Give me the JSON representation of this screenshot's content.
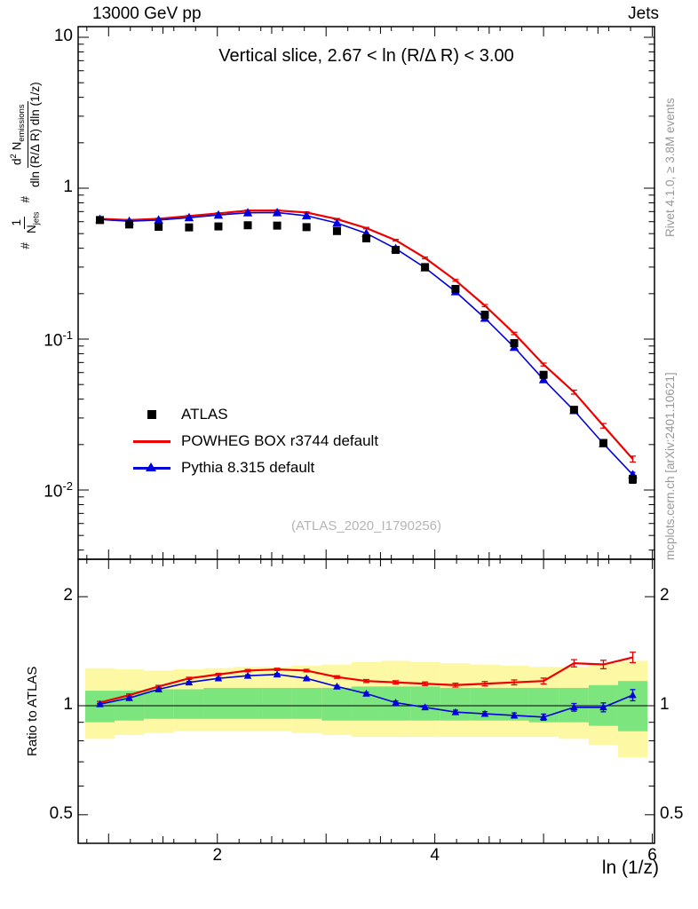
{
  "header": {
    "left": "13000 GeV pp",
    "right": "Jets"
  },
  "title": "Vertical slice, 2.67 < ln (R/Δ R) < 3.00",
  "watermark": "(ATLAS_2020_I1790256)",
  "side_notes": {
    "top": "Rivet 4.1.0, ≥ 3.8M events",
    "bottom": "mcplots.cern.ch [arXiv:2401.10621]"
  },
  "axes": {
    "x_label": "ln (1/z)",
    "ratio_label": "Ratio to ATLAS",
    "main_y_ticks": [
      {
        "v": 10,
        "t": "10"
      },
      {
        "v": 1,
        "t": "1"
      },
      {
        "v": 0.1,
        "t": "10",
        "sup": "-1"
      },
      {
        "v": 0.01,
        "t": "10",
        "sup": "-2"
      }
    ],
    "ratio_y_ticks": [
      {
        "v": 2,
        "t": "2"
      },
      {
        "v": 1,
        "t": "1"
      },
      {
        "v": 0.5,
        "t": "0.5"
      }
    ],
    "x_ticks": [
      {
        "v": 2,
        "t": "2"
      },
      {
        "v": 4,
        "t": "4"
      },
      {
        "v": 6,
        "t": "6"
      }
    ],
    "ylabel_formula": {
      "hash": "#",
      "hash2": "#",
      "num1": "1",
      "den1_main": "N",
      "den1_sub": "jets",
      "num2_main": "d",
      "num2_sup": "2",
      "num2_rest": " N",
      "num2_sub": "emissions",
      "den2": "dln (R/Δ R) dln (1/z)"
    }
  },
  "legend": [
    {
      "label": "ATLAS",
      "marker": "square",
      "color": "#000000"
    },
    {
      "label": "POWHEG BOX r3744 default",
      "marker": "line",
      "color": "#ee0000"
    },
    {
      "label": "Pythia 8.315 default",
      "marker": "triangle-line",
      "color": "#0000dd"
    }
  ],
  "chart_data": {
    "type": "line",
    "title": "Vertical slice, 2.67 < ln (R/Δ R) < 3.00",
    "xlabel": "ln (1/z)",
    "ylabel": "1/N_jets d2N_emissions / dln(R/Δ R) dln(1/z)",
    "ratio_ylabel": "Ratio to ATLAS",
    "xlim": [
      0.72,
      6.02
    ],
    "main_ylim": [
      0.0035,
      11.7
    ],
    "ratio_ylim": [
      0.42,
      2.54
    ],
    "main_yscale": "log",
    "ratio_yscale": "log",
    "x": [
      0.92,
      1.19,
      1.46,
      1.74,
      2.01,
      2.28,
      2.55,
      2.82,
      3.1,
      3.37,
      3.64,
      3.91,
      4.19,
      4.46,
      4.73,
      5.0,
      5.28,
      5.55,
      5.82
    ],
    "series": [
      {
        "name": "ATLAS",
        "marker": "square",
        "color": "#000000",
        "values": [
          0.615,
          0.575,
          0.555,
          0.55,
          0.558,
          0.568,
          0.565,
          0.552,
          0.52,
          0.465,
          0.39,
          0.3,
          0.215,
          0.145,
          0.094,
          0.058,
          0.034,
          0.0205,
          0.0118
        ],
        "err_frac": [
          0.02,
          0.018,
          0.018,
          0.018,
          0.018,
          0.018,
          0.018,
          0.018,
          0.018,
          0.018,
          0.02,
          0.02,
          0.022,
          0.025,
          0.028,
          0.032,
          0.04,
          0.05,
          0.06
        ]
      },
      {
        "name": "POWHEG BOX r3744 default",
        "marker": "none",
        "color": "#ee0000",
        "ratio_to_atlas": [
          1.02,
          1.07,
          1.13,
          1.19,
          1.22,
          1.25,
          1.26,
          1.25,
          1.2,
          1.17,
          1.16,
          1.15,
          1.14,
          1.15,
          1.16,
          1.17,
          1.31,
          1.3,
          1.36
        ],
        "ratio_err": [
          0.008,
          0.008,
          0.008,
          0.008,
          0.008,
          0.009,
          0.009,
          0.01,
          0.01,
          0.011,
          0.012,
          0.013,
          0.014,
          0.016,
          0.018,
          0.022,
          0.03,
          0.035,
          0.045
        ]
      },
      {
        "name": "Pythia 8.315 default",
        "marker": "triangle",
        "color": "#0000dd",
        "ratio_to_atlas": [
          1.01,
          1.05,
          1.11,
          1.16,
          1.19,
          1.21,
          1.22,
          1.19,
          1.13,
          1.08,
          1.02,
          0.99,
          0.96,
          0.95,
          0.94,
          0.93,
          0.99,
          0.99,
          1.07
        ],
        "ratio_err": [
          0.006,
          0.006,
          0.006,
          0.006,
          0.006,
          0.007,
          0.007,
          0.008,
          0.008,
          0.009,
          0.01,
          0.011,
          0.012,
          0.013,
          0.015,
          0.018,
          0.024,
          0.028,
          0.038
        ]
      }
    ],
    "bands": {
      "yellow": {
        "color": "#fcf8a4",
        "lo": [
          0.81,
          0.83,
          0.84,
          0.85,
          0.85,
          0.85,
          0.85,
          0.84,
          0.83,
          0.82,
          0.82,
          0.82,
          0.82,
          0.82,
          0.82,
          0.82,
          0.81,
          0.78,
          0.72
        ],
        "hi": [
          1.27,
          1.26,
          1.25,
          1.26,
          1.27,
          1.28,
          1.28,
          1.29,
          1.3,
          1.32,
          1.33,
          1.32,
          1.31,
          1.3,
          1.29,
          1.28,
          1.28,
          1.31,
          1.33
        ]
      },
      "green": {
        "color": "#7de57d",
        "lo": [
          0.9,
          0.91,
          0.92,
          0.92,
          0.92,
          0.92,
          0.92,
          0.92,
          0.91,
          0.91,
          0.91,
          0.91,
          0.91,
          0.91,
          0.91,
          0.9,
          0.9,
          0.88,
          0.85
        ],
        "hi": [
          1.1,
          1.1,
          1.11,
          1.11,
          1.12,
          1.12,
          1.12,
          1.12,
          1.12,
          1.13,
          1.13,
          1.13,
          1.12,
          1.12,
          1.12,
          1.12,
          1.12,
          1.14,
          1.17
        ]
      }
    }
  }
}
